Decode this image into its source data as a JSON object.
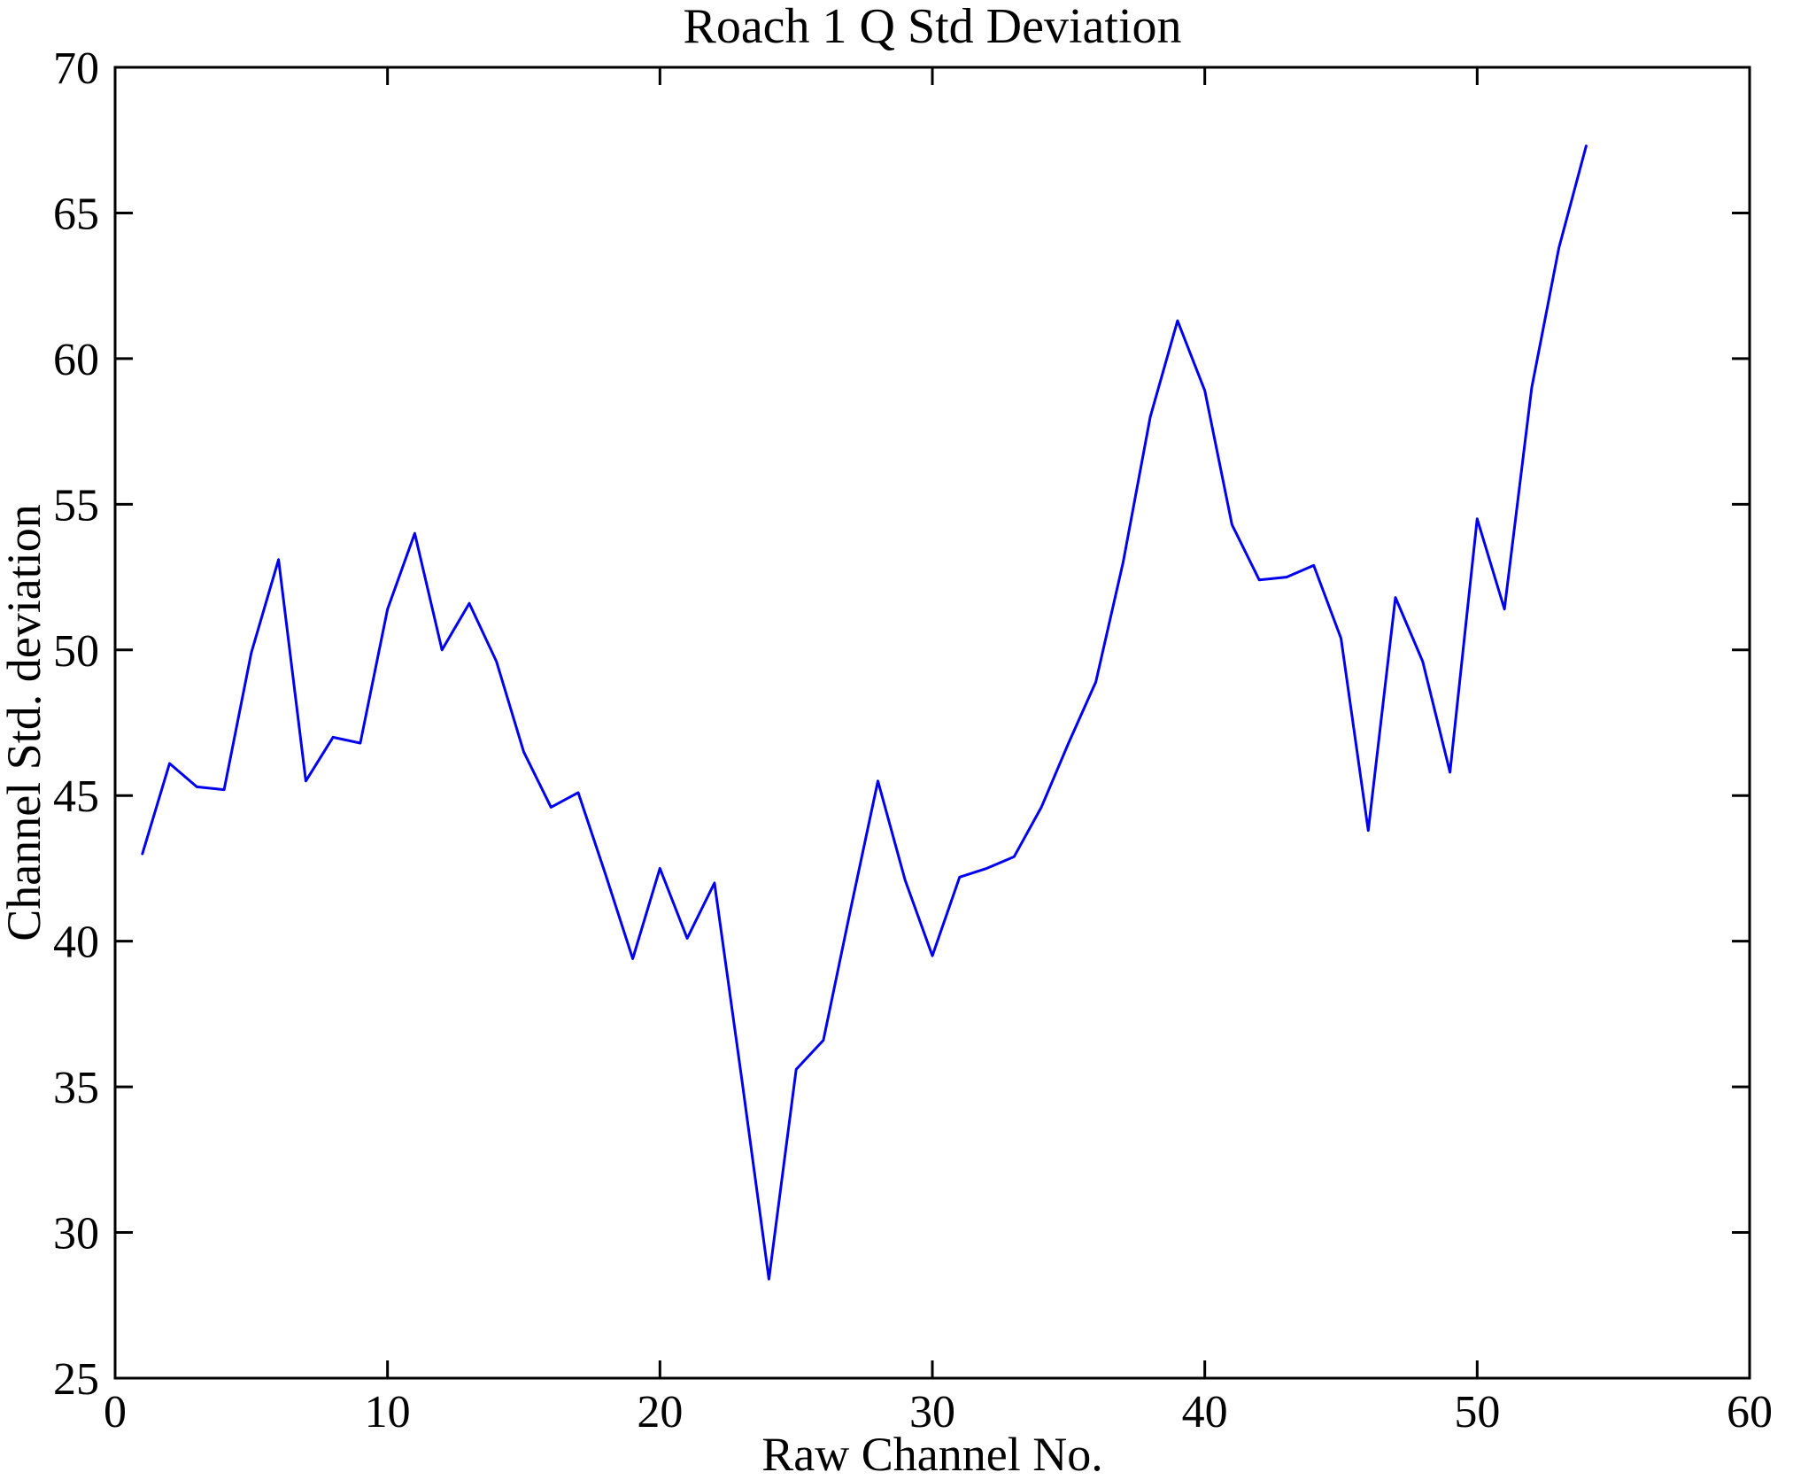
{
  "page": {
    "background": "#ffffff"
  },
  "chart": {
    "line_color": "#0000EE",
    "axis_color": "#000000",
    "line_width": 3,
    "axis_width": 3,
    "tick_length": 20
  },
  "chart_data": {
    "type": "line",
    "title": "Roach 1 Q Std Deviation",
    "xlabel": "Raw Channel No.",
    "ylabel": "Channel Std. deviation",
    "xlim": [
      0,
      60
    ],
    "ylim": [
      25,
      70
    ],
    "xticks": [
      0,
      10,
      20,
      30,
      40,
      50,
      60
    ],
    "yticks": [
      25,
      30,
      35,
      40,
      45,
      50,
      55,
      60,
      65,
      70
    ],
    "grid": false,
    "legend_position": "none",
    "series": [
      {
        "name": "Channel Std. deviation",
        "x": [
          1,
          2,
          3,
          4,
          5,
          6,
          7,
          8,
          9,
          10,
          11,
          12,
          13,
          14,
          15,
          16,
          17,
          18,
          19,
          20,
          21,
          22,
          23,
          24,
          25,
          26,
          27,
          28,
          29,
          30,
          31,
          32,
          33,
          34,
          35,
          36,
          37,
          38,
          39,
          40,
          41,
          42,
          43,
          44,
          45,
          46,
          47,
          48,
          49,
          50,
          51,
          52,
          53,
          54
        ],
        "y": [
          43.0,
          46.1,
          45.3,
          45.2,
          49.9,
          53.1,
          45.5,
          47.0,
          46.8,
          51.4,
          54.0,
          50.0,
          51.6,
          49.6,
          46.5,
          44.6,
          45.1,
          42.3,
          39.4,
          42.5,
          40.1,
          42.0,
          35.3,
          28.4,
          35.6,
          36.6,
          41.1,
          45.5,
          42.1,
          39.5,
          42.2,
          42.5,
          42.9,
          44.6,
          46.8,
          48.9,
          53.0,
          58.0,
          61.3,
          58.9,
          54.3,
          52.4,
          52.5,
          52.9,
          50.4,
          43.8,
          51.8,
          49.6,
          45.8,
          54.5,
          51.4,
          59.0,
          63.8,
          67.3
        ]
      }
    ]
  }
}
